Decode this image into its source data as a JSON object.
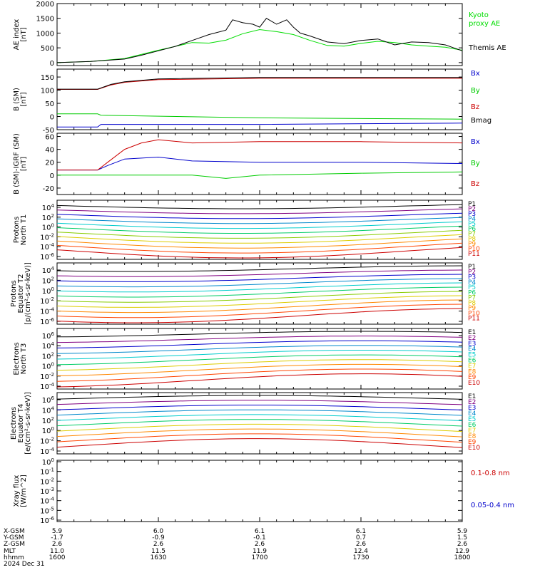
{
  "chart_data": [
    {
      "type": "line",
      "ylabel": "AE index [nT]",
      "ylim": [
        -100,
        2000
      ],
      "y_ticks": [
        "0",
        "500",
        "1000",
        "1500",
        "2000"
      ],
      "x_range_hhmm": [
        1600,
        1800
      ],
      "series": [
        {
          "name": "Kyoto proxy AE",
          "color": "#00dd00",
          "x": [
            1600,
            1610,
            1620,
            1630,
            1640,
            1645,
            1650,
            1655,
            1700,
            1705,
            1710,
            1715,
            1720,
            1725,
            1730,
            1735,
            1740,
            1745,
            1750,
            1755,
            1800
          ],
          "y": [
            0,
            40,
            140,
            420,
            680,
            660,
            760,
            980,
            1120,
            1050,
            950,
            750,
            580,
            560,
            650,
            720,
            680,
            600,
            560,
            520,
            420
          ]
        },
        {
          "name": "Themis AE",
          "color": "#000000",
          "x": [
            1600,
            1610,
            1620,
            1625,
            1630,
            1635,
            1640,
            1645,
            1650,
            1652,
            1655,
            1658,
            1700,
            1702,
            1705,
            1708,
            1710,
            1712,
            1715,
            1720,
            1725,
            1730,
            1735,
            1740,
            1745,
            1750,
            1755,
            1800
          ],
          "y": [
            0,
            40,
            120,
            250,
            400,
            550,
            750,
            950,
            1100,
            1450,
            1350,
            1300,
            1200,
            1500,
            1300,
            1450,
            1200,
            1000,
            900,
            700,
            640,
            750,
            800,
            600,
            700,
            680,
            600,
            400
          ]
        }
      ]
    },
    {
      "type": "line",
      "ylabel": "B (SM) [nT]",
      "ylim": [
        -50,
        180
      ],
      "y_ticks": [
        "150",
        "100",
        "50",
        "0",
        "-50"
      ],
      "series": [
        {
          "name": "Bx",
          "color": "#0000cc",
          "x": [
            1600,
            1612,
            1613,
            1700,
            1800
          ],
          "y": [
            -40,
            -40,
            -30,
            -30,
            -25
          ]
        },
        {
          "name": "By",
          "color": "#00cc00",
          "x": [
            1600,
            1612,
            1613,
            1700,
            1800
          ],
          "y": [
            10,
            10,
            5,
            -5,
            -10
          ]
        },
        {
          "name": "Bz",
          "color": "#cc0000",
          "x": [
            1600,
            1612,
            1616,
            1620,
            1630,
            1700,
            1800
          ],
          "y": [
            103,
            103,
            120,
            130,
            140,
            145,
            145
          ]
        },
        {
          "name": "Bmag",
          "color": "#000000",
          "x": [
            1600,
            1612,
            1616,
            1620,
            1630,
            1700,
            1800
          ],
          "y": [
            104,
            104,
            122,
            132,
            143,
            148,
            148
          ]
        }
      ]
    },
    {
      "type": "line",
      "ylabel": "B (SM)-IGRF (SM) [nT]",
      "ylim": [
        -30,
        65
      ],
      "y_ticks": [
        "60",
        "40",
        "20",
        "0",
        "-20"
      ],
      "series": [
        {
          "name": "Bx",
          "color": "#0000cc",
          "x": [
            1600,
            1612,
            1615,
            1620,
            1630,
            1640,
            1700,
            1730,
            1800
          ],
          "y": [
            8,
            8,
            15,
            25,
            28,
            22,
            20,
            20,
            18
          ]
        },
        {
          "name": "By",
          "color": "#00cc00",
          "x": [
            1600,
            1612,
            1620,
            1640,
            1650,
            1700,
            1730,
            1800
          ],
          "y": [
            0,
            0,
            0,
            0,
            -5,
            0,
            3,
            5
          ]
        },
        {
          "name": "Bz",
          "color": "#cc0000",
          "x": [
            1600,
            1612,
            1615,
            1620,
            1625,
            1630,
            1640,
            1700,
            1730,
            1800
          ],
          "y": [
            8,
            8,
            20,
            40,
            50,
            55,
            50,
            52,
            52,
            50
          ]
        }
      ]
    },
    {
      "type": "line",
      "ylabel": "Protons North T1",
      "ylog": true,
      "y_ticks": [
        "10^4",
        "10^2",
        "10^0",
        "10^-2",
        "10^-4",
        "10^-6"
      ],
      "channels": [
        "P1",
        "P2",
        "P3",
        "P4",
        "P5",
        "P6",
        "P7",
        "P8",
        "P9",
        "P10",
        "P11"
      ],
      "channel_colors": [
        "#000000",
        "#800080",
        "#0000cc",
        "#0088cc",
        "#00cccc",
        "#00cc66",
        "#88cc00",
        "#ddcc00",
        "#ff8800",
        "#ff4400",
        "#cc0000"
      ]
    },
    {
      "type": "line",
      "ylabel": "Protons Equator T2 [p/(cm²-s-sr-keV)]",
      "ylog": true,
      "y_ticks": [
        "10^4",
        "10^2",
        "10^0",
        "10^-2",
        "10^-4",
        "10^-6"
      ],
      "channels": [
        "P1",
        "P2",
        "P3",
        "P4",
        "P5",
        "P6",
        "P7",
        "P8",
        "P9",
        "P10",
        "P11"
      ],
      "channel_colors": [
        "#000000",
        "#800080",
        "#0000cc",
        "#0088cc",
        "#00cccc",
        "#00cc66",
        "#88cc00",
        "#ddcc00",
        "#ff8800",
        "#ff4400",
        "#cc0000"
      ]
    },
    {
      "type": "line",
      "ylabel": "Electrons North T3",
      "ylog": true,
      "y_ticks": [
        "10^6",
        "10^4",
        "10^2",
        "10^0",
        "10^-2",
        "10^-4"
      ],
      "channels": [
        "E1",
        "E2",
        "E3",
        "E4",
        "E5",
        "E6",
        "E7",
        "E8",
        "E9",
        "E10"
      ],
      "channel_colors": [
        "#000000",
        "#800080",
        "#0000cc",
        "#0088cc",
        "#00cccc",
        "#00cc66",
        "#ddcc00",
        "#ff8800",
        "#ff4400",
        "#cc0000"
      ]
    },
    {
      "type": "line",
      "ylabel": "Electrons Equator T4 [e/(cm²-s-sr-keV)]",
      "ylog": true,
      "y_ticks": [
        "10^6",
        "10^4",
        "10^2",
        "10^0",
        "10^-2",
        "10^-4"
      ],
      "channels": [
        "E1",
        "E2",
        "E3",
        "E4",
        "E5",
        "E6",
        "E7",
        "E8",
        "E9",
        "E10"
      ],
      "channel_colors": [
        "#000000",
        "#800080",
        "#0000cc",
        "#0088cc",
        "#00cccc",
        "#00cc66",
        "#ddcc00",
        "#ff8800",
        "#ff4400",
        "#cc0000"
      ]
    },
    {
      "type": "line",
      "ylabel": "Xray flux [W/m^2]",
      "ylog": true,
      "y_ticks": [
        "10^0",
        "10^-1",
        "10^-2",
        "10^-3",
        "10^-4",
        "10^-5",
        "10^-6"
      ],
      "series": [
        {
          "name": "0.1-0.8 nm",
          "color": "#cc0000"
        },
        {
          "name": "0.05-0.4 nm",
          "color": "#0000cc"
        }
      ]
    }
  ],
  "legend": {
    "ae": [
      {
        "text": "Kyoto",
        "color": "#00dd00"
      },
      {
        "text": "proxy AE",
        "color": "#00dd00"
      },
      {
        "text": "Themis AE",
        "color": "#000000"
      }
    ],
    "b_sm": [
      {
        "text": "Bx",
        "color": "#0000cc"
      },
      {
        "text": "By",
        "color": "#00cc00"
      },
      {
        "text": "Bz",
        "color": "#cc0000"
      },
      {
        "text": "Bmag",
        "color": "#000000"
      }
    ],
    "b_igrf": [
      {
        "text": "Bx",
        "color": "#0000cc"
      },
      {
        "text": "By",
        "color": "#00cc00"
      },
      {
        "text": "Bz",
        "color": "#cc0000"
      }
    ],
    "xray": [
      {
        "text": "0.1-0.8 nm",
        "color": "#cc0000"
      },
      {
        "text": "0.05-0.4 nm",
        "color": "#0000cc"
      }
    ]
  },
  "ephemeris": {
    "row_labels": [
      "X-GSM",
      "Y-GSM",
      "Z-GSM",
      "MLT",
      "hhmm",
      "2024 Dec 31"
    ],
    "columns": [
      [
        "5.9",
        "-1.7",
        "2.6",
        "11.0",
        "1600"
      ],
      [
        "6.0",
        "-0.9",
        "2.6",
        "11.5",
        "1630"
      ],
      [
        "6.1",
        "-0.1",
        "2.6",
        "11.9",
        "1700"
      ],
      [
        "6.1",
        "0.7",
        "2.6",
        "12.4",
        "1730"
      ],
      [
        "5.9",
        "1.5",
        "2.6",
        "12.9",
        "1800"
      ]
    ]
  }
}
